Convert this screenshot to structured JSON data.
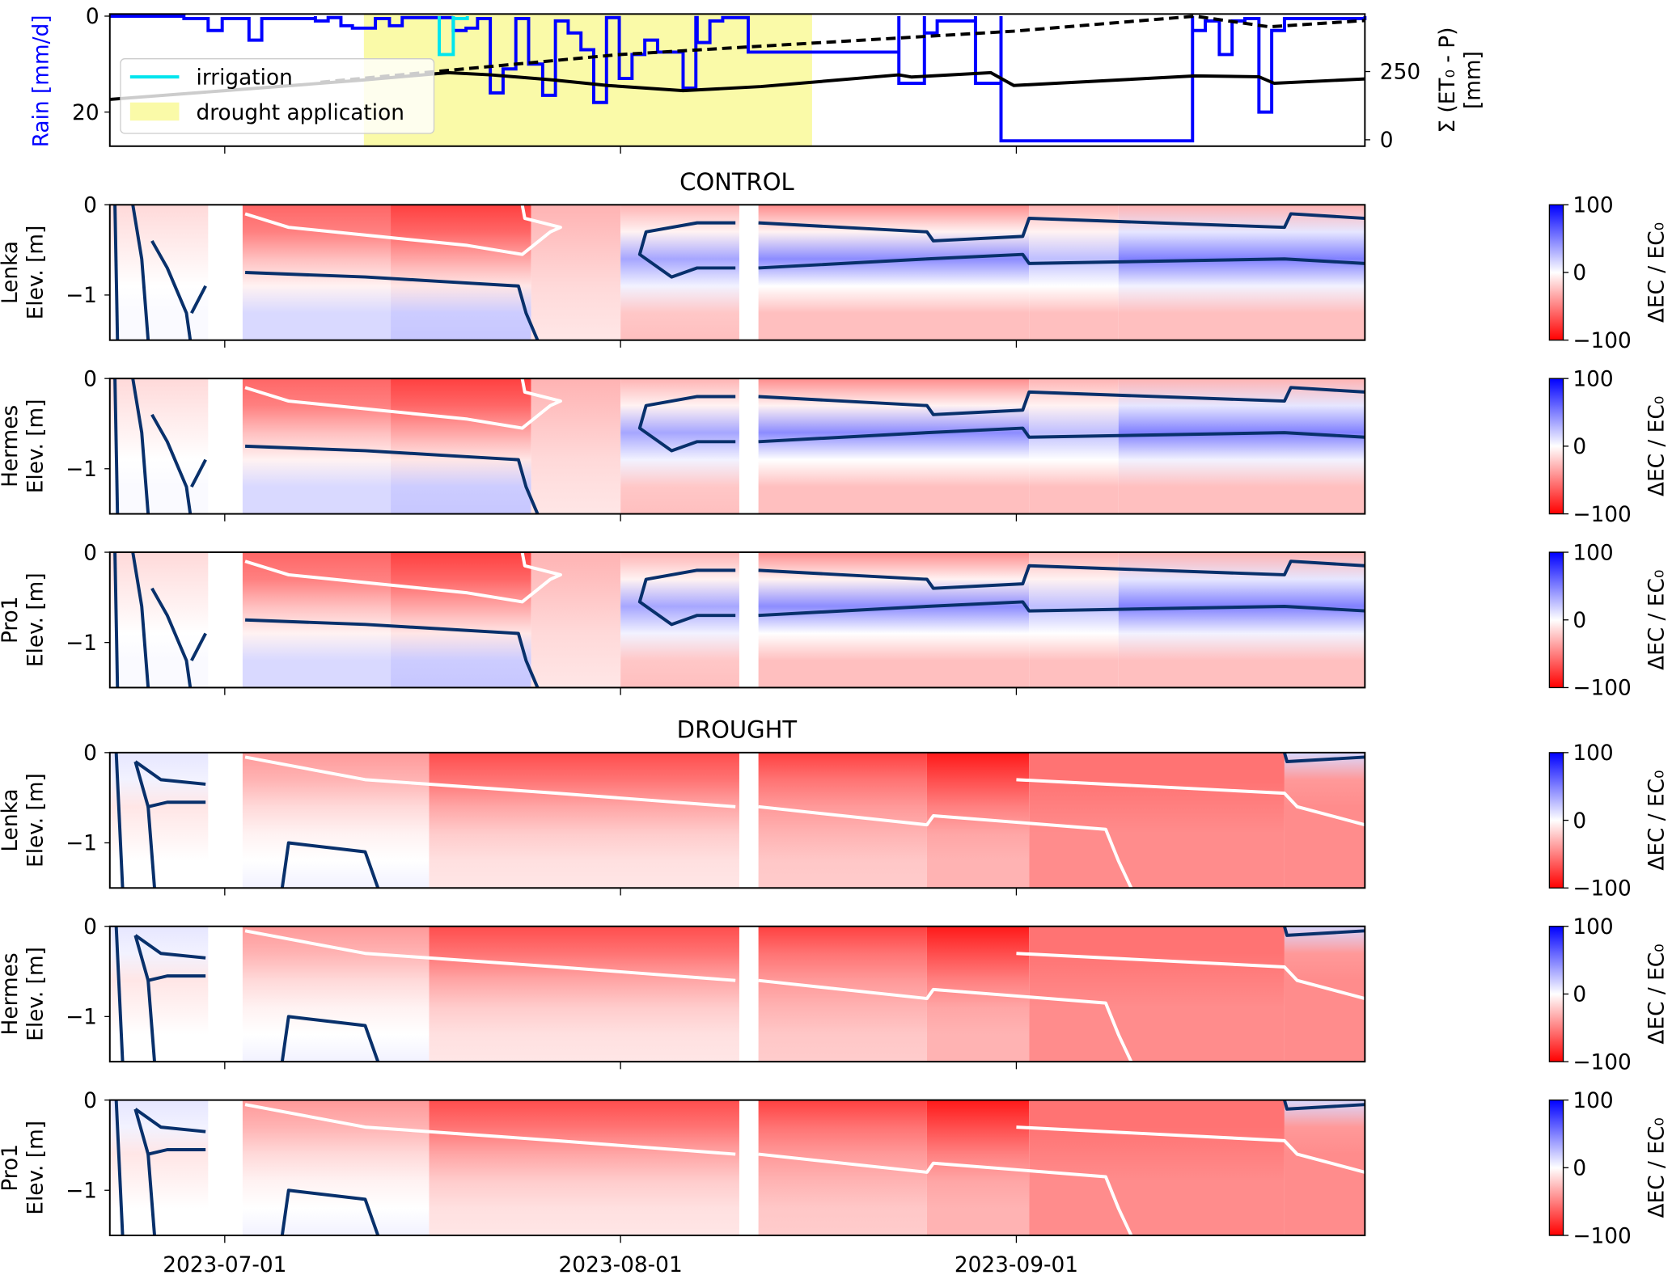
{
  "chart_data": {
    "type": "heatmap",
    "x_origin": "2023-06-22",
    "x_unit": "days since x_origin",
    "x_range": [
      0,
      98.3
    ],
    "xticks": [
      {
        "day": 9,
        "label": "2023-07-01"
      },
      {
        "day": 40,
        "label": "2023-08-01"
      },
      {
        "day": 71,
        "label": "2023-09-01"
      }
    ],
    "top": {
      "type": "line",
      "ylabel_left": "Rain [mm/d]",
      "ylabel_right": "Σ (ET₀ - P)",
      "ylabel_right_unit": "[mm]",
      "ylim_left": [
        27,
        0
      ],
      "yticks_left": [
        "0",
        "20"
      ],
      "yticks_left_values": [
        0,
        20
      ],
      "ylim_right": [
        0,
        453
      ],
      "yticks_right": [
        "0",
        "250"
      ],
      "yticks_right_values": [
        0,
        250
      ],
      "legend": [
        {
          "label": "irrigation",
          "color": "#00e5ee"
        },
        {
          "label": "drought application",
          "color": "#fafaa8"
        }
      ],
      "drought_application": [
        19.9,
        55.0
      ],
      "rain": [
        [
          5.8,
          7.7,
          0.5
        ],
        [
          7.7,
          8.8,
          3
        ],
        [
          8.8,
          10.9,
          0.5
        ],
        [
          10.9,
          11.9,
          5
        ],
        [
          11.9,
          12.9,
          0.5
        ],
        [
          16.1,
          17.1,
          1
        ],
        [
          17.1,
          18.1,
          0.3
        ],
        [
          18.1,
          19,
          2
        ],
        [
          19,
          20.8,
          2.5
        ],
        [
          20.8,
          21.9,
          0.5
        ],
        [
          21.9,
          22.9,
          2
        ],
        [
          22.9,
          25.8,
          0.3
        ],
        [
          26.9,
          27.9,
          3
        ],
        [
          27.9,
          28.8,
          2.5
        ],
        [
          28.8,
          29.8,
          0.5
        ],
        [
          29.8,
          30.8,
          16
        ],
        [
          30.8,
          31.8,
          11
        ],
        [
          31.8,
          32.8,
          0.5
        ],
        [
          32.8,
          33.9,
          10
        ],
        [
          33.9,
          34.9,
          16.5
        ],
        [
          34.9,
          35.9,
          1
        ],
        [
          35.9,
          36.9,
          3.5
        ],
        [
          36.9,
          37.9,
          7
        ],
        [
          37.9,
          38.9,
          18
        ],
        [
          38.9,
          39.9,
          0.3
        ],
        [
          39.9,
          40.9,
          13
        ],
        [
          40.9,
          41.9,
          8
        ],
        [
          41.9,
          42.9,
          5
        ],
        [
          42.9,
          43.9,
          7.5
        ],
        [
          43.9,
          44.9,
          7.5
        ],
        [
          44.9,
          45.9,
          15
        ],
        [
          45.9,
          46,
          0.3
        ],
        [
          46,
          47,
          5.5
        ],
        [
          47,
          48,
          1
        ],
        [
          48,
          50,
          0.3
        ],
        [
          50,
          51,
          7.5
        ],
        [
          61.8,
          62.8,
          14
        ],
        [
          63.8,
          64.8,
          3.5
        ],
        [
          64.8,
          65.8,
          1
        ],
        [
          67.8,
          68.8,
          14
        ],
        [
          69.8,
          70.8,
          26
        ],
        [
          84.8,
          85.8,
          3
        ],
        [
          85.8,
          86.9,
          1
        ],
        [
          86.9,
          87.9,
          8
        ],
        [
          87.9,
          88.9,
          1
        ],
        [
          88.9,
          90,
          0.5
        ],
        [
          90,
          91,
          20
        ],
        [
          91,
          92,
          3
        ],
        [
          92,
          98.3,
          0.5
        ]
      ],
      "irrigation": [
        [
          25.8,
          26.9,
          8
        ],
        [
          26.9,
          28,
          0.5
        ]
      ],
      "cumulative_control": [
        [
          0,
          148
        ],
        [
          9,
          180
        ],
        [
          19.8,
          219
        ],
        [
          26.5,
          246
        ],
        [
          29.8,
          238
        ],
        [
          34.8,
          219
        ],
        [
          39,
          199
        ],
        [
          44.9,
          180
        ],
        [
          51,
          195
        ],
        [
          61.8,
          238
        ],
        [
          62.8,
          230
        ],
        [
          69,
          246
        ],
        [
          70.8,
          199
        ],
        [
          85,
          234
        ],
        [
          90,
          231
        ],
        [
          91.2,
          207
        ],
        [
          98.3,
          223
        ]
      ],
      "cumulative_drought": [
        [
          16.5,
          211
        ],
        [
          39.8,
          312
        ],
        [
          70.8,
          398
        ],
        [
          85,
          453
        ],
        [
          90.8,
          414
        ],
        [
          98.3,
          437
        ]
      ]
    },
    "colorbar": {
      "label": "ΔEC / EC₀",
      "ticks": [
        "100",
        "0",
        "−100"
      ],
      "tick_values": [
        100,
        0,
        -100
      ],
      "range": [
        -100,
        100
      ],
      "colormap": "bwr"
    },
    "ytick_labels": [
      "0",
      "−1"
    ],
    "ytick_values": [
      0,
      -1
    ],
    "ylim": [
      -1.5,
      0
    ],
    "ylabel_unit": "Elev. [m]",
    "depth_bands": [
      0,
      -0.3,
      -0.6,
      -0.9,
      -1.2,
      -1.5
    ],
    "groups": [
      {
        "title": "CONTROL",
        "segments": [
          {
            "from": 0,
            "to": 7.7,
            "profile": [
              -15,
              -10,
              -5,
              0,
              2,
              2
            ]
          },
          {
            "from": 10.4,
            "to": 22,
            "profile": [
              -60,
              -50,
              -25,
              -5,
              15,
              15
            ]
          },
          {
            "from": 22,
            "to": 33,
            "profile": [
              -75,
              -60,
              -35,
              -10,
              20,
              22
            ]
          },
          {
            "from": 33,
            "to": 40,
            "profile": [
              -30,
              -25,
              -20,
              -15,
              -12,
              -10
            ]
          },
          {
            "from": 40,
            "to": 49.3,
            "profile": [
              -30,
              -5,
              35,
              5,
              -22,
              -25
            ]
          },
          {
            "from": 50.8,
            "to": 72,
            "profile": [
              -45,
              -5,
              45,
              0,
              -25,
              -25
            ]
          },
          {
            "from": 72,
            "to": 79,
            "profile": [
              -30,
              -5,
              25,
              0,
              -25,
              -25
            ]
          },
          {
            "from": 79,
            "to": 98.3,
            "profile": [
              -30,
              10,
              50,
              5,
              -25,
              -25
            ]
          }
        ],
        "contours": [
          {
            "level": "white",
            "points": [
              [
                10.6,
                -0.1
              ],
              [
                14,
                -0.25
              ],
              [
                21,
                -0.35
              ],
              [
                28,
                -0.45
              ],
              [
                32.3,
                -0.55
              ],
              [
                34.5,
                -0.3
              ],
              [
                35.3,
                -0.25
              ],
              [
                32.5,
                -0.15
              ],
              [
                32.3,
                0
              ]
            ]
          },
          {
            "level": "navy",
            "points": [
              [
                10.6,
                -0.75
              ],
              [
                20,
                -0.8
              ],
              [
                26,
                -0.85
              ],
              [
                32,
                -0.9
              ],
              [
                32.6,
                -1.2
              ],
              [
                33.5,
                -1.5
              ]
            ]
          },
          {
            "level": "navy",
            "points": [
              [
                49,
                -0.2
              ],
              [
                46,
                -0.2
              ],
              [
                42,
                -0.3
              ],
              [
                41.5,
                -0.55
              ],
              [
                44,
                -0.8
              ],
              [
                46,
                -0.7
              ],
              [
                49,
                -0.7
              ]
            ]
          },
          {
            "level": "navy",
            "points": [
              [
                50.8,
                -0.2
              ],
              [
                64,
                -0.3
              ],
              [
                64.5,
                -0.4
              ],
              [
                71.5,
                -0.35
              ],
              [
                72,
                -0.15
              ],
              [
                92,
                -0.25
              ],
              [
                92.5,
                -0.1
              ],
              [
                98.3,
                -0.15
              ]
            ]
          },
          {
            "level": "navy",
            "points": [
              [
                50.8,
                -0.7
              ],
              [
                64,
                -0.6
              ],
              [
                71.5,
                -0.55
              ],
              [
                72,
                -0.65
              ],
              [
                92,
                -0.6
              ],
              [
                98.3,
                -0.65
              ]
            ]
          },
          {
            "level": "navy",
            "points": [
              [
                0.4,
                0
              ],
              [
                0.6,
                -1.5
              ]
            ]
          },
          {
            "level": "navy",
            "points": [
              [
                1.8,
                0
              ],
              [
                2.5,
                -0.6
              ],
              [
                3,
                -1.5
              ]
            ]
          },
          {
            "level": "navy",
            "points": [
              [
                3.3,
                -0.4
              ],
              [
                4.5,
                -0.7
              ],
              [
                6,
                -1.2
              ],
              [
                6.3,
                -1.5
              ]
            ]
          },
          {
            "level": "navy",
            "points": [
              [
                6.4,
                -1.2
              ],
              [
                7.5,
                -0.9
              ]
            ]
          }
        ],
        "panels": [
          {
            "name": "Lenka"
          },
          {
            "name": "Hermes"
          },
          {
            "name": "Pro1"
          }
        ]
      },
      {
        "title": "DROUGHT",
        "segments": [
          {
            "from": 0,
            "to": 7.7,
            "profile": [
              10,
              5,
              -10,
              -5,
              0,
              0
            ]
          },
          {
            "from": 10.4,
            "to": 25,
            "profile": [
              -40,
              -30,
              -15,
              -5,
              0,
              5
            ]
          },
          {
            "from": 25,
            "to": 49.3,
            "profile": [
              -70,
              -55,
              -35,
              -20,
              -12,
              -10
            ]
          },
          {
            "from": 50.8,
            "to": 64,
            "profile": [
              -75,
              -55,
              -40,
              -30,
              -22,
              -20
            ]
          },
          {
            "from": 64,
            "to": 72,
            "profile": [
              -90,
              -70,
              -50,
              -35,
              -30,
              -30
            ]
          },
          {
            "from": 72,
            "to": 92,
            "profile": [
              -55,
              -55,
              -50,
              -45,
              -45,
              -45
            ]
          },
          {
            "from": 92,
            "to": 98.3,
            "profile": [
              15,
              -40,
              -45,
              -45,
              -45,
              -45
            ]
          }
        ],
        "contours": [
          {
            "level": "white",
            "points": [
              [
                10.6,
                -0.05
              ],
              [
                20,
                -0.3
              ],
              [
                35,
                -0.45
              ],
              [
                49,
                -0.6
              ]
            ]
          },
          {
            "level": "white",
            "points": [
              [
                50.8,
                -0.6
              ],
              [
                64,
                -0.8
              ],
              [
                64.5,
                -0.7
              ],
              [
                78,
                -0.85
              ],
              [
                79,
                -1.2
              ],
              [
                80,
                -1.5
              ]
            ]
          },
          {
            "level": "white",
            "points": [
              [
                71,
                -0.3
              ],
              [
                92,
                -0.45
              ],
              [
                93,
                -0.6
              ],
              [
                98.3,
                -0.8
              ]
            ]
          },
          {
            "level": "navy",
            "points": [
              [
                13.5,
                -1.5
              ],
              [
                14,
                -1
              ],
              [
                20,
                -1.1
              ],
              [
                21,
                -1.5
              ]
            ]
          },
          {
            "level": "navy",
            "points": [
              [
                92,
                0
              ],
              [
                92.2,
                -0.1
              ],
              [
                98.3,
                -0.05
              ]
            ]
          },
          {
            "level": "navy",
            "points": [
              [
                0.5,
                0
              ],
              [
                1,
                -1.5
              ]
            ]
          },
          {
            "level": "navy",
            "points": [
              [
                2,
                -0.1
              ],
              [
                3,
                -0.6
              ],
              [
                4.5,
                -0.55
              ],
              [
                7.5,
                -0.55
              ]
            ]
          },
          {
            "level": "navy",
            "points": [
              [
                2,
                -0.1
              ],
              [
                4,
                -0.3
              ],
              [
                7.5,
                -0.35
              ]
            ]
          },
          {
            "level": "navy",
            "points": [
              [
                3,
                -0.6
              ],
              [
                3.5,
                -1.5
              ]
            ]
          }
        ],
        "panels": [
          {
            "name": "Lenka"
          },
          {
            "name": "Hermes"
          },
          {
            "name": "Pro1"
          }
        ]
      }
    ]
  }
}
